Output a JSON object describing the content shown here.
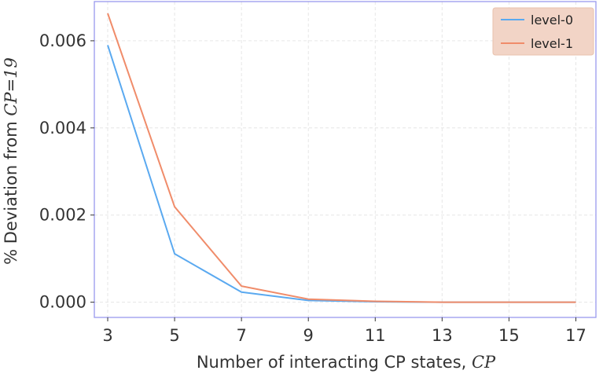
{
  "chart_data": {
    "type": "line",
    "x": [
      3,
      5,
      7,
      9,
      11,
      13,
      15,
      17
    ],
    "xticks": [
      "3",
      "5",
      "7",
      "9",
      "11",
      "13",
      "15",
      "17"
    ],
    "yticks": [
      "0.000",
      "0.002",
      "0.004",
      "0.006"
    ],
    "xlabel": "Number of interacting CP states, ",
    "xlabel_math": "CP",
    "ylabel": "% Deviation from ",
    "ylabel_math": "CP=19",
    "xlim": [
      2.6,
      17.6
    ],
    "ylim": [
      -0.00035,
      0.0069
    ],
    "grid": true,
    "legend_position": "top-right",
    "series": [
      {
        "name": "level-0",
        "color": "#5aa9f0",
        "values": [
          0.0059,
          0.00111,
          0.00023,
          4e-05,
          1e-05,
          0.0,
          0.0,
          0.0
        ]
      },
      {
        "name": "level-1",
        "color": "#f08c6a",
        "values": [
          0.00663,
          0.00219,
          0.00037,
          7e-05,
          2e-05,
          0.0,
          0.0,
          0.0
        ]
      }
    ]
  },
  "colors": {
    "frame": "#9999ee",
    "legend_bg": "#f2d4c6",
    "legend_border": "#e8c2ae"
  }
}
